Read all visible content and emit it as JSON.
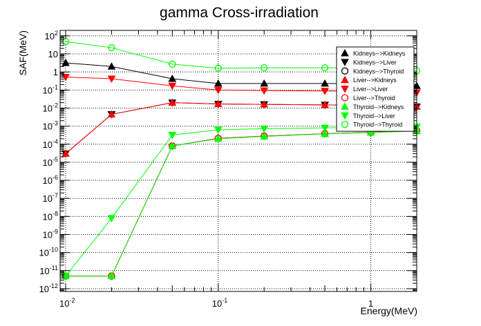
{
  "chart_data": {
    "type": "line",
    "title": "gamma Cross-irradiation",
    "xlabel": "Energy(MeV)",
    "ylabel": "SAF(MeV)",
    "xscale": "log",
    "yscale": "log",
    "xlim": [
      0.0092,
      2.0
    ],
    "ylim": [
      7e-13,
      200
    ],
    "grid": true,
    "legend_position": "top-right",
    "x_ticks": [
      {
        "value": 0.01,
        "base": "10",
        "exp": "-2"
      },
      {
        "value": 0.1,
        "base": "10",
        "exp": "-1"
      },
      {
        "value": 1,
        "base": "1",
        "exp": ""
      }
    ],
    "y_ticks": [
      {
        "value": 100.0,
        "base": "10",
        "exp": "2"
      },
      {
        "value": 10.0,
        "base": "10",
        "exp": ""
      },
      {
        "value": 1.0,
        "base": "1",
        "exp": ""
      },
      {
        "value": 0.1,
        "base": "10",
        "exp": "-1"
      },
      {
        "value": 0.01,
        "base": "10",
        "exp": "-2"
      },
      {
        "value": 0.001,
        "base": "10",
        "exp": "-3"
      },
      {
        "value": 0.0001,
        "base": "10",
        "exp": "-4"
      },
      {
        "value": 1e-05,
        "base": "10",
        "exp": "-5"
      },
      {
        "value": 1e-06,
        "base": "10",
        "exp": "-6"
      },
      {
        "value": 1e-07,
        "base": "10",
        "exp": "-7"
      },
      {
        "value": 1e-08,
        "base": "10",
        "exp": "-8"
      },
      {
        "value": 1e-09,
        "base": "10",
        "exp": "-9"
      },
      {
        "value": 1e-10,
        "base": "10",
        "exp": "-10"
      },
      {
        "value": 1e-11,
        "base": "10",
        "exp": "-11"
      },
      {
        "value": 1e-12,
        "base": "10",
        "exp": "-12"
      }
    ],
    "x": [
      0.01,
      0.02,
      0.05,
      0.1,
      0.2,
      0.5,
      1,
      2
    ],
    "series": [
      {
        "name": "Kidneys-->Kidneys",
        "color": "#000000",
        "marker": "triangle-up-filled",
        "values": [
          3.2,
          2.0,
          0.42,
          0.23,
          0.23,
          0.23,
          0.23,
          0.17
        ]
      },
      {
        "name": "Kidneys-->Liver",
        "color": "#000000",
        "marker": "triangle-down-filled",
        "values": [
          3e-05,
          0.0045,
          0.02,
          0.017,
          0.016,
          0.015,
          0.014,
          0.012
        ]
      },
      {
        "name": "Kidneys-->Thyroid",
        "color": "#000000",
        "marker": "circle-open",
        "values": [
          5e-12,
          5e-12,
          8e-05,
          0.00021,
          0.00028,
          0.00038,
          0.00045,
          0.00055
        ]
      },
      {
        "name": "Liver-->Kidneys",
        "color": "#ff0000",
        "marker": "triangle-up-filled",
        "values": [
          3e-05,
          0.0045,
          0.02,
          0.017,
          0.016,
          0.015,
          0.014,
          0.012
        ]
      },
      {
        "name": "Liver-->Liver",
        "color": "#ff0000",
        "marker": "triangle-down-filled",
        "values": [
          0.52,
          0.42,
          0.17,
          0.1,
          0.093,
          0.088,
          0.083,
          0.072
        ]
      },
      {
        "name": "Liver-->Thyroid",
        "color": "#ff0000",
        "marker": "circle-open",
        "values": [
          5e-12,
          5e-12,
          8e-05,
          0.00021,
          0.00028,
          0.00038,
          0.00045,
          0.00055
        ]
      },
      {
        "name": "Thyroid-->Kidneys",
        "color": "#00ff00",
        "marker": "triangle-up-filled",
        "values": [
          5e-12,
          5e-12,
          8e-05,
          0.0002,
          0.00027,
          0.00037,
          0.00044,
          0.00054
        ]
      },
      {
        "name": "Thyroid-->Liver",
        "color": "#00ff00",
        "marker": "triangle-down-filled",
        "values": [
          5e-12,
          8e-09,
          0.00032,
          0.00062,
          0.00072,
          0.0008,
          0.00085,
          0.0009
        ]
      },
      {
        "name": "Thyroid-->Thyroid",
        "color": "#00ff00",
        "marker": "circle-open",
        "values": [
          48,
          22,
          2.7,
          1.6,
          1.7,
          1.7,
          1.7,
          1.15
        ]
      }
    ]
  }
}
